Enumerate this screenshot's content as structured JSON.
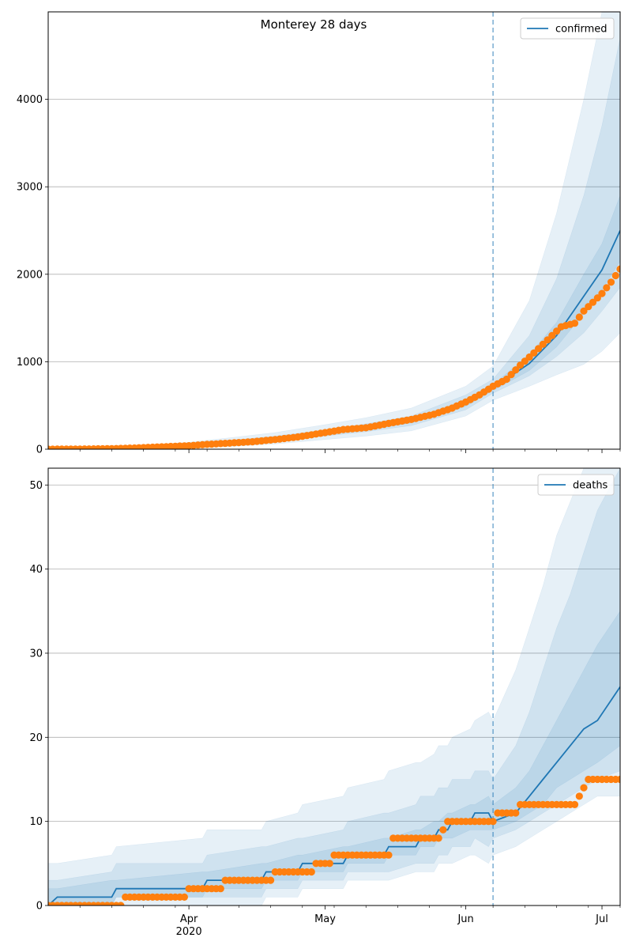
{
  "figure": {
    "title": "Monterey 28 days"
  },
  "colors": {
    "model": "#1f77b4",
    "observed": "#ff7f0e",
    "band": "#1f77b4",
    "grid": "#b0b0b0",
    "cutoff": "#1f77b4"
  },
  "x_axis": {
    "start": "2020-03-01",
    "end": "2020-07-05",
    "major_ticks": [
      {
        "date": "2020-04-01",
        "label": "Apr",
        "sublabel": "2020"
      },
      {
        "date": "2020-05-01",
        "label": "May",
        "sublabel": ""
      },
      {
        "date": "2020-06-01",
        "label": "Jun",
        "sublabel": ""
      },
      {
        "date": "2020-07-01",
        "label": "Jul",
        "sublabel": ""
      }
    ],
    "minor_tick_dates": [
      "2020-03-08",
      "2020-03-15",
      "2020-03-22",
      "2020-03-29",
      "2020-04-05",
      "2020-04-12",
      "2020-04-19",
      "2020-04-26",
      "2020-05-03",
      "2020-05-10",
      "2020-05-17",
      "2020-05-24",
      "2020-05-31",
      "2020-06-07",
      "2020-06-14",
      "2020-06-21",
      "2020-06-28",
      "2020-07-05"
    ]
  },
  "chart_data": [
    {
      "type": "line",
      "legend": "confirmed",
      "legend_position": "upper right",
      "grid": "horizontal",
      "ylim": [
        0,
        5000
      ],
      "yticks": [
        0,
        1000,
        2000,
        3000,
        4000
      ],
      "cutoff_date": "2020-06-07",
      "model_series": [
        {
          "date": "2020-03-01",
          "value": 0
        },
        {
          "date": "2020-03-10",
          "value": 5
        },
        {
          "date": "2020-03-20",
          "value": 15
        },
        {
          "date": "2020-04-01",
          "value": 40
        },
        {
          "date": "2020-04-10",
          "value": 70
        },
        {
          "date": "2020-04-20",
          "value": 110
        },
        {
          "date": "2020-05-01",
          "value": 180
        },
        {
          "date": "2020-05-10",
          "value": 240
        },
        {
          "date": "2020-05-20",
          "value": 320
        },
        {
          "date": "2020-06-01",
          "value": 520
        },
        {
          "date": "2020-06-07",
          "value": 700
        },
        {
          "date": "2020-06-15",
          "value": 980
        },
        {
          "date": "2020-06-21",
          "value": 1300
        },
        {
          "date": "2020-06-27",
          "value": 1750
        },
        {
          "date": "2020-07-01",
          "value": 2050
        },
        {
          "date": "2020-07-05",
          "value": 2500
        }
      ],
      "bands": [
        {
          "lower": [
            0,
            0,
            0,
            10,
            30,
            60,
            110,
            150,
            210,
            380,
            560,
            720,
            850,
            970,
            1120,
            1330
          ],
          "upper": [
            5,
            15,
            35,
            80,
            130,
            190,
            280,
            360,
            470,
            720,
            950,
            1700,
            2700,
            4000,
            5000,
            5000
          ]
        },
        {
          "lower": [
            0,
            2,
            8,
            25,
            50,
            90,
            150,
            200,
            270,
            450,
            640,
            840,
            1060,
            1330,
            1580,
            1850
          ],
          "upper": [
            3,
            10,
            22,
            60,
            100,
            150,
            220,
            290,
            380,
            620,
            800,
            1300,
            1950,
            2900,
            3700,
            4700
          ]
        },
        {
          "lower": [
            0,
            4,
            12,
            33,
            60,
            100,
            165,
            225,
            300,
            490,
            670,
            900,
            1170,
            1550,
            1820,
            2150
          ],
          "upper": [
            2,
            7,
            18,
            48,
            82,
            125,
            198,
            260,
            345,
            560,
            740,
            1080,
            1450,
            2000,
            2350,
            2900
          ]
        }
      ],
      "observed": [
        {
          "date": "2020-03-01",
          "value": 0
        },
        {
          "date": "2020-03-05",
          "value": 1
        },
        {
          "date": "2020-03-10",
          "value": 3
        },
        {
          "date": "2020-03-15",
          "value": 6
        },
        {
          "date": "2020-03-20",
          "value": 14
        },
        {
          "date": "2020-03-25",
          "value": 25
        },
        {
          "date": "2020-04-01",
          "value": 40
        },
        {
          "date": "2020-04-05",
          "value": 55
        },
        {
          "date": "2020-04-10",
          "value": 70
        },
        {
          "date": "2020-04-15",
          "value": 85
        },
        {
          "date": "2020-04-20",
          "value": 110
        },
        {
          "date": "2020-04-25",
          "value": 140
        },
        {
          "date": "2020-05-01",
          "value": 190
        },
        {
          "date": "2020-05-05",
          "value": 225
        },
        {
          "date": "2020-05-10",
          "value": 245
        },
        {
          "date": "2020-05-15",
          "value": 295
        },
        {
          "date": "2020-05-20",
          "value": 340
        },
        {
          "date": "2020-05-25",
          "value": 400
        },
        {
          "date": "2020-05-29",
          "value": 470
        },
        {
          "date": "2020-06-01",
          "value": 540
        },
        {
          "date": "2020-06-04",
          "value": 620
        },
        {
          "date": "2020-06-07",
          "value": 720
        },
        {
          "date": "2020-06-10",
          "value": 800
        },
        {
          "date": "2020-06-13",
          "value": 960
        },
        {
          "date": "2020-06-16",
          "value": 1100
        },
        {
          "date": "2020-06-19",
          "value": 1250
        },
        {
          "date": "2020-06-22",
          "value": 1400
        },
        {
          "date": "2020-06-25",
          "value": 1440
        },
        {
          "date": "2020-06-27",
          "value": 1580
        },
        {
          "date": "2020-06-29",
          "value": 1680
        },
        {
          "date": "2020-07-01",
          "value": 1780
        },
        {
          "date": "2020-07-03",
          "value": 1910
        },
        {
          "date": "2020-07-05",
          "value": 2060
        }
      ]
    },
    {
      "type": "line",
      "legend": "deaths",
      "legend_position": "upper right",
      "grid": "horizontal",
      "ylim": [
        0,
        52
      ],
      "yticks": [
        0,
        10,
        20,
        30,
        40,
        50
      ],
      "cutoff_date": "2020-06-07",
      "model_series": [
        {
          "date": "2020-03-01",
          "value": 0
        },
        {
          "date": "2020-03-03",
          "value": 1
        },
        {
          "date": "2020-03-15",
          "value": 1
        },
        {
          "date": "2020-03-16",
          "value": 2
        },
        {
          "date": "2020-04-04",
          "value": 2
        },
        {
          "date": "2020-04-05",
          "value": 3
        },
        {
          "date": "2020-04-17",
          "value": 3
        },
        {
          "date": "2020-04-18",
          "value": 4
        },
        {
          "date": "2020-04-25",
          "value": 4
        },
        {
          "date": "2020-04-26",
          "value": 5
        },
        {
          "date": "2020-05-05",
          "value": 5
        },
        {
          "date": "2020-05-06",
          "value": 6
        },
        {
          "date": "2020-05-14",
          "value": 6
        },
        {
          "date": "2020-05-15",
          "value": 7
        },
        {
          "date": "2020-05-21",
          "value": 7
        },
        {
          "date": "2020-05-22",
          "value": 8
        },
        {
          "date": "2020-05-25",
          "value": 8
        },
        {
          "date": "2020-05-26",
          "value": 9
        },
        {
          "date": "2020-05-28",
          "value": 9
        },
        {
          "date": "2020-05-29",
          "value": 10
        },
        {
          "date": "2020-06-02",
          "value": 10
        },
        {
          "date": "2020-06-03",
          "value": 11
        },
        {
          "date": "2020-06-06",
          "value": 11
        },
        {
          "date": "2020-06-07",
          "value": 10
        },
        {
          "date": "2020-06-12",
          "value": 11
        },
        {
          "date": "2020-06-15",
          "value": 13
        },
        {
          "date": "2020-06-18",
          "value": 15
        },
        {
          "date": "2020-06-21",
          "value": 17
        },
        {
          "date": "2020-06-24",
          "value": 19
        },
        {
          "date": "2020-06-27",
          "value": 21
        },
        {
          "date": "2020-06-30",
          "value": 22
        },
        {
          "date": "2020-07-05",
          "value": 26
        }
      ],
      "bands": [
        {
          "lower": [
            0,
            0,
            0,
            0,
            0,
            0,
            0,
            1,
            1,
            2,
            2,
            3,
            3,
            3,
            4,
            4,
            4,
            5,
            5,
            5,
            6,
            6,
            5,
            6,
            7,
            8,
            9,
            10,
            11,
            12,
            13,
            13
          ],
          "upper": [
            5,
            5,
            6,
            7,
            8,
            9,
            9,
            10,
            11,
            12,
            13,
            14,
            15,
            16,
            17,
            17,
            18,
            19,
            19,
            20,
            21,
            22,
            23,
            22,
            28,
            33,
            38,
            44,
            48,
            52,
            52,
            52
          ]
        },
        {
          "lower": [
            0,
            0,
            0,
            1,
            1,
            1,
            1,
            2,
            2,
            3,
            3,
            4,
            4,
            4,
            5,
            5,
            5,
            6,
            6,
            7,
            7,
            8,
            7,
            8,
            9,
            10,
            11,
            12,
            13,
            14,
            15,
            16
          ],
          "upper": [
            3,
            3,
            4,
            5,
            5,
            6,
            7,
            7,
            8,
            8,
            9,
            10,
            11,
            11,
            12,
            13,
            13,
            14,
            14,
            15,
            15,
            16,
            16,
            15,
            19,
            23,
            28,
            33,
            37,
            42,
            47,
            52
          ]
        },
        {
          "lower": [
            0,
            0,
            0,
            1,
            1,
            2,
            2,
            3,
            3,
            4,
            4,
            5,
            5,
            6,
            6,
            7,
            7,
            8,
            8,
            8,
            9,
            9,
            9,
            9,
            10,
            11,
            12,
            14,
            15,
            16,
            17,
            19
          ],
          "upper": [
            2,
            2,
            3,
            3,
            4,
            4,
            5,
            5,
            6,
            6,
            7,
            7,
            8,
            8,
            9,
            9,
            10,
            10,
            11,
            11,
            12,
            12,
            13,
            12,
            14,
            16,
            19,
            22,
            25,
            28,
            31,
            35
          ]
        }
      ],
      "observed": [
        {
          "date": "2020-03-01",
          "value": 0
        },
        {
          "date": "2020-03-17",
          "value": 0
        },
        {
          "date": "2020-03-18",
          "value": 1
        },
        {
          "date": "2020-03-31",
          "value": 1
        },
        {
          "date": "2020-04-01",
          "value": 2
        },
        {
          "date": "2020-04-08",
          "value": 2
        },
        {
          "date": "2020-04-09",
          "value": 3
        },
        {
          "date": "2020-04-19",
          "value": 3
        },
        {
          "date": "2020-04-20",
          "value": 4
        },
        {
          "date": "2020-04-28",
          "value": 4
        },
        {
          "date": "2020-04-29",
          "value": 5
        },
        {
          "date": "2020-05-02",
          "value": 5
        },
        {
          "date": "2020-05-03",
          "value": 6
        },
        {
          "date": "2020-05-15",
          "value": 6
        },
        {
          "date": "2020-05-16",
          "value": 8
        },
        {
          "date": "2020-05-26",
          "value": 8
        },
        {
          "date": "2020-05-27",
          "value": 9
        },
        {
          "date": "2020-05-28",
          "value": 10
        },
        {
          "date": "2020-06-07",
          "value": 10
        },
        {
          "date": "2020-06-08",
          "value": 11
        },
        {
          "date": "2020-06-12",
          "value": 11
        },
        {
          "date": "2020-06-13",
          "value": 12
        },
        {
          "date": "2020-06-25",
          "value": 12
        },
        {
          "date": "2020-06-26",
          "value": 13
        },
        {
          "date": "2020-06-27",
          "value": 14
        },
        {
          "date": "2020-06-28",
          "value": 15
        },
        {
          "date": "2020-07-05",
          "value": 15
        }
      ]
    }
  ]
}
